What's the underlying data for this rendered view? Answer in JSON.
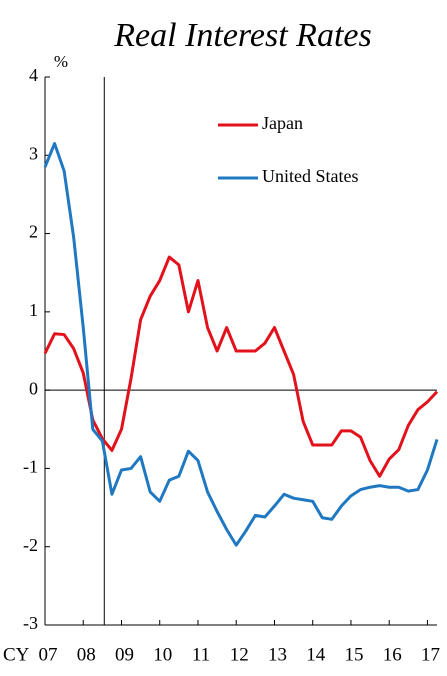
{
  "chart_data": {
    "type": "line",
    "title": "Real Interest Rates",
    "y_label": "%",
    "x_label": "CY",
    "x": [
      2007,
      2007.25,
      2007.5,
      2007.75,
      2008,
      2008.25,
      2008.5,
      2008.75,
      2009,
      2009.25,
      2009.5,
      2009.75,
      2010,
      2010.25,
      2010.5,
      2010.75,
      2011,
      2011.25,
      2011.5,
      2011.75,
      2012,
      2012.25,
      2012.5,
      2012.75,
      2013,
      2013.25,
      2013.5,
      2013.75,
      2014,
      2014.25,
      2014.5,
      2014.75,
      2015,
      2015.25,
      2015.5,
      2015.75,
      2016,
      2016.25,
      2016.5,
      2016.75,
      2017,
      2017.25
    ],
    "series": [
      {
        "name": "Japan",
        "color": "#e3111b",
        "values": [
          0.47,
          0.72,
          0.71,
          0.53,
          0.22,
          -0.38,
          -0.62,
          -0.77,
          -0.5,
          0.15,
          0.9,
          1.2,
          1.4,
          1.7,
          1.6,
          1.0,
          1.4,
          0.8,
          0.5,
          0.8,
          0.5,
          0.5,
          0.5,
          0.6,
          0.8,
          0.5,
          0.2,
          -0.4,
          -0.7,
          -0.7,
          -0.7,
          -0.52,
          -0.52,
          -0.6,
          -0.9,
          -1.1,
          -0.88,
          -0.76,
          -0.45,
          -0.25,
          -0.15,
          -0.02
        ]
      },
      {
        "name": "United States",
        "color": "#1f78c1",
        "values": [
          2.85,
          3.15,
          2.8,
          1.95,
          0.8,
          -0.5,
          -0.65,
          -1.33,
          -1.02,
          -1.0,
          -0.85,
          -1.3,
          -1.42,
          -1.15,
          -1.1,
          -0.78,
          -0.9,
          -1.3,
          -1.55,
          -1.78,
          -1.98,
          -1.8,
          -1.6,
          -1.62,
          -1.48,
          -1.33,
          -1.38,
          -1.4,
          -1.42,
          -1.63,
          -1.65,
          -1.48,
          -1.35,
          -1.27,
          -1.24,
          -1.22,
          -1.24,
          -1.24,
          -1.29,
          -1.27,
          -1.02,
          -0.63
        ]
      }
    ],
    "xlim": [
      2007,
      2017.25
    ],
    "xticks": [
      {
        "value": 2007,
        "label": "07"
      },
      {
        "value": 2008,
        "label": "08"
      },
      {
        "value": 2009,
        "label": "09"
      },
      {
        "value": 2010,
        "label": "10"
      },
      {
        "value": 2011,
        "label": "11"
      },
      {
        "value": 2012,
        "label": "12"
      },
      {
        "value": 2013,
        "label": "13"
      },
      {
        "value": 2014,
        "label": "14"
      },
      {
        "value": 2015,
        "label": "15"
      },
      {
        "value": 2016,
        "label": "16"
      },
      {
        "value": 2017,
        "label": "17"
      }
    ],
    "ylim": [
      -3,
      4
    ],
    "yticks": [
      -3,
      -2,
      -1,
      0,
      1,
      2,
      3,
      4
    ],
    "vertical_line": 2008.55,
    "legend": "upper right",
    "grid": false
  }
}
